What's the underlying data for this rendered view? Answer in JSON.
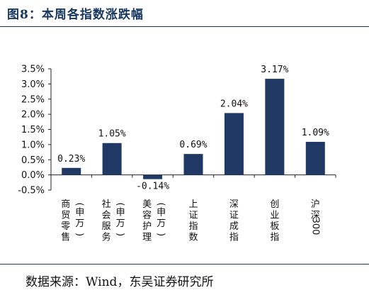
{
  "figure": {
    "title": "图8：本周各指数涨跌幅",
    "source": "数据来源：Wind，东吴证券研究所"
  },
  "chart_data": {
    "type": "bar",
    "title": "",
    "xlabel": "",
    "ylabel": "",
    "categories": [
      "商贸零售(申万)",
      "社会服务(申万)",
      "美容护理(申万)",
      "上证指数",
      "深证成指",
      "创业板指",
      "沪深300"
    ],
    "values": [
      0.23,
      1.05,
      -0.14,
      0.69,
      2.04,
      3.17,
      1.09
    ],
    "data_labels": [
      "0.23%",
      "1.05%",
      "-0.14%",
      "0.69%",
      "2.04%",
      "3.17%",
      "1.09%"
    ],
    "ylim": [
      -0.5,
      3.5
    ],
    "yticks": [
      -0.5,
      0.0,
      0.5,
      1.0,
      1.5,
      2.0,
      2.5,
      3.0,
      3.5
    ],
    "ytick_labels": [
      "-0.5%",
      "0.0%",
      "0.5%",
      "1.0%",
      "1.5%",
      "2.0%",
      "2.5%",
      "3.0%",
      "3.5%"
    ],
    "bar_color": "#1f3864",
    "grid": false,
    "legend": "none"
  }
}
